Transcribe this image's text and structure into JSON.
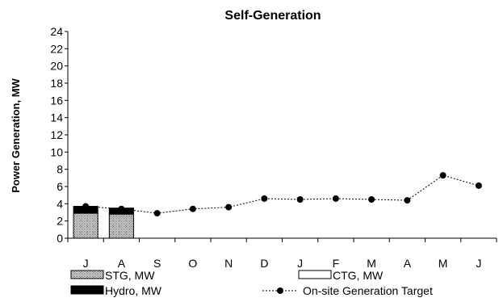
{
  "chart_data": {
    "type": "bar",
    "title": "Self-Generation",
    "xlabel": "",
    "ylabel": "Power Generation, MW",
    "ylim": [
      0,
      24
    ],
    "yticks": [
      0,
      2,
      4,
      6,
      8,
      10,
      12,
      14,
      16,
      18,
      20,
      22,
      24
    ],
    "grid": false,
    "legend_position": "bottom",
    "categories": [
      "J",
      "A",
      "S",
      "O",
      "N",
      "D",
      "J",
      "F",
      "M",
      "A",
      "M",
      "J"
    ],
    "series": [
      {
        "name": "STG, MW",
        "kind": "stacked-bar",
        "pattern": "dotted",
        "color": "#9a9a9a",
        "values": [
          2.9,
          2.8,
          null,
          null,
          null,
          null,
          null,
          null,
          null,
          null,
          null,
          null
        ]
      },
      {
        "name": "Hydro, MW",
        "kind": "stacked-bar",
        "color": "#000000",
        "values": [
          0.8,
          0.7,
          null,
          null,
          null,
          null,
          null,
          null,
          null,
          null,
          null,
          null
        ]
      },
      {
        "name": "CTG, MW",
        "kind": "stacked-bar",
        "color": "#ffffff",
        "values": [
          0,
          0,
          null,
          null,
          null,
          null,
          null,
          null,
          null,
          null,
          null,
          null
        ]
      },
      {
        "name": "On-site Generation Target",
        "kind": "line",
        "line_style": "dotted",
        "marker": "circle",
        "color": "#000000",
        "values": [
          3.7,
          3.4,
          2.9,
          3.4,
          3.6,
          4.6,
          4.5,
          4.6,
          4.5,
          4.4,
          7.3,
          6.1
        ]
      }
    ],
    "legend": [
      {
        "series": "STG, MW",
        "swatch": "dotted-box"
      },
      {
        "series": "CTG, MW",
        "swatch": "white-box"
      },
      {
        "series": "Hydro, MW",
        "swatch": "black-box"
      },
      {
        "series": "On-site Generation Target",
        "swatch": "dotted-line-marker"
      }
    ]
  }
}
